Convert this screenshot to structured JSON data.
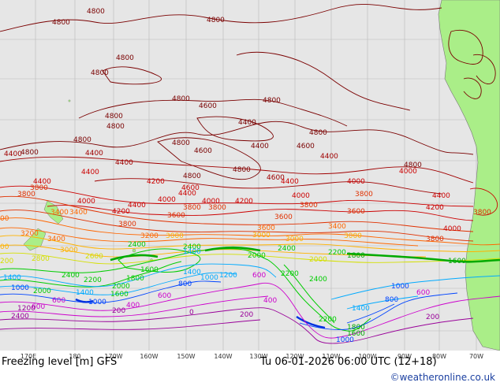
{
  "map": {
    "title": "Freezing level [m] GFS",
    "valid_time": "Tu 06-01-2026 06:00 UTC (12+18)",
    "credit": "©weatheronline.co.uk",
    "longitude_labels": [
      "170E",
      "180",
      "170W",
      "160W",
      "150W",
      "140W",
      "130W",
      "120W",
      "110W",
      "100W",
      "90W",
      "80W",
      "70W"
    ],
    "contour_levels": [
      "4800",
      "4600",
      "4400",
      "4200",
      "4000",
      "3800",
      "3600",
      "3400",
      "3200",
      "3000",
      "2800",
      "2600",
      "2400",
      "2200",
      "2000",
      "1800",
      "1600",
      "1400",
      "1200",
      "1000",
      "800",
      "600",
      "400",
      "200"
    ],
    "colors": {
      "ocean": "#e6e6e6",
      "land": "#aaee88",
      "contour_4800": "#7a0000",
      "contour_4000": "#cc0000",
      "contour_3400": "#ff6600",
      "contour_3000": "#ffb300",
      "contour_2600": "#d4e000",
      "contour_2200": "#00cc00",
      "contour_1400": "#00aaff",
      "contour_1000": "#0044ff",
      "contour_600": "#cc00cc",
      "contour_200": "#990099"
    }
  }
}
